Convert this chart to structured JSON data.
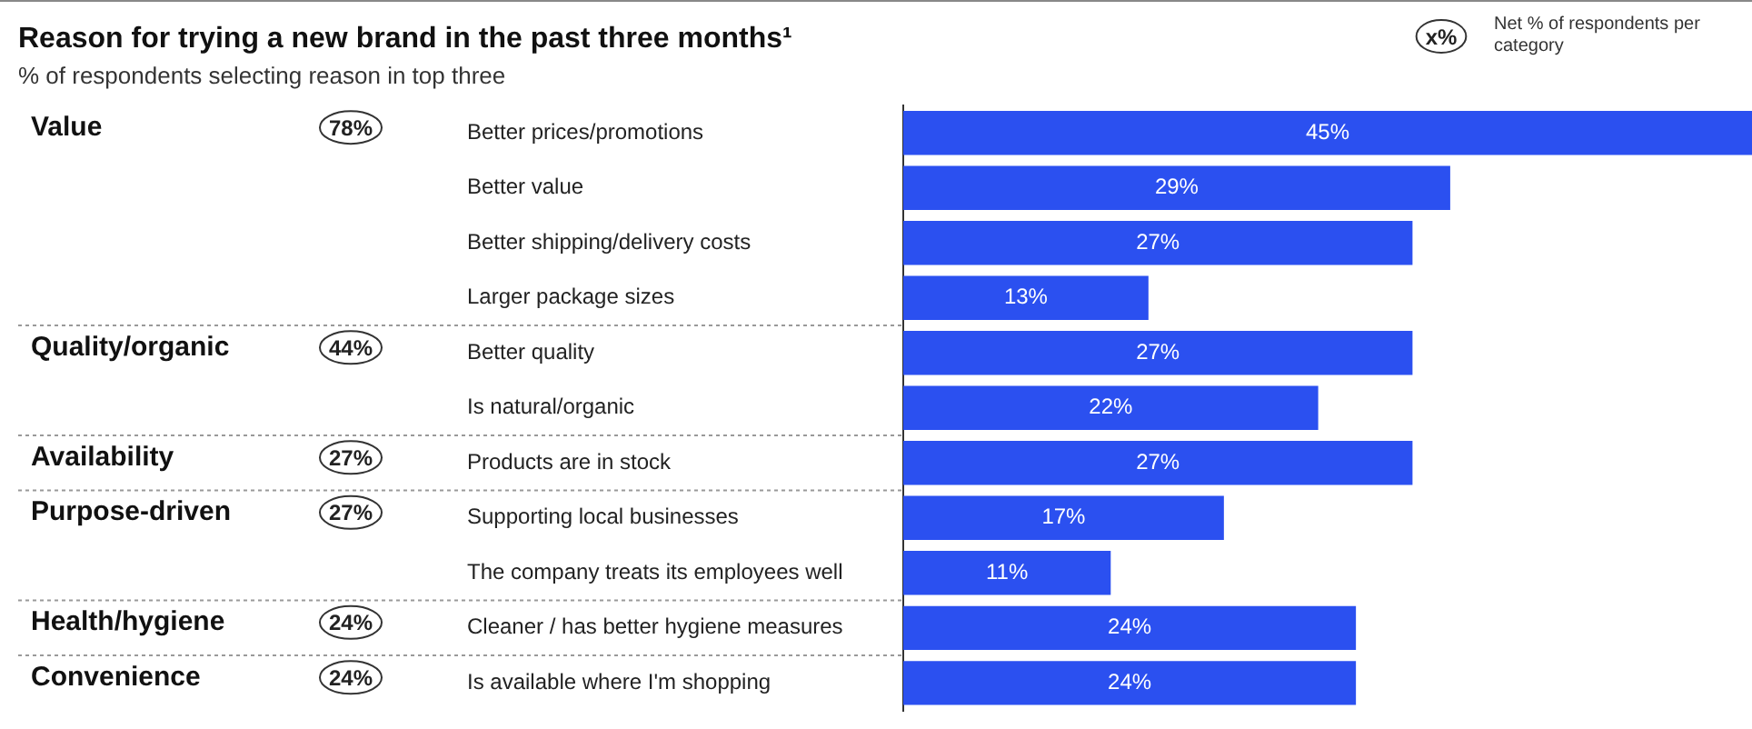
{
  "chart_data": {
    "type": "bar",
    "orientation": "horizontal",
    "title": "Reason for trying a new brand in the past three months¹",
    "subtitle": "% of respondents selecting reason in top three",
    "categories": [
      "Better prices/promotions",
      "Better value",
      "Better shipping/delivery costs",
      "Larger package sizes",
      "Better quality",
      "Is natural/organic",
      "Products are in stock",
      "Supporting local businesses",
      "The company treats its employees well",
      "Cleaner / has better hygiene measures",
      "Is available where I'm shopping"
    ],
    "values": [
      45,
      29,
      27,
      13,
      27,
      22,
      27,
      17,
      11,
      24,
      24
    ],
    "value_labels": [
      "45%",
      "29%",
      "27%",
      "13%",
      "27%",
      "22%",
      "27%",
      "17%",
      "11%",
      "24%",
      "24%"
    ],
    "color": "#2b50f0",
    "legend": false,
    "annotations": [
      "Value",
      "78%",
      "Quality/organic",
      "44%",
      "Availability",
      "27%",
      "Purpose-driven",
      "27%",
      "Health/hygiene",
      "24%",
      "Convenience",
      "24%",
      "x%",
      "Net % of respondents per category"
    ]
  }
}
